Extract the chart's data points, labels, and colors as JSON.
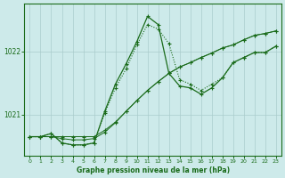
{
  "background_color": "#cdeaea",
  "grid_color": "#aacccc",
  "line_color": "#1a6b1a",
  "title": "Graphe pression niveau de la mer (hPa)",
  "xmin": -0.5,
  "xmax": 23.5,
  "ymin": 1020.35,
  "ymax": 1022.75,
  "yticks": [
    1021,
    1022
  ],
  "xticks": [
    0,
    1,
    2,
    3,
    4,
    5,
    6,
    7,
    8,
    9,
    10,
    11,
    12,
    13,
    14,
    15,
    16,
    17,
    18,
    19,
    20,
    21,
    22,
    23
  ],
  "line1_x": [
    0,
    1,
    2,
    3,
    4,
    5,
    6,
    7,
    8,
    9,
    10,
    11,
    12,
    13,
    14,
    15,
    16,
    17,
    18,
    19,
    20,
    21,
    22,
    23
  ],
  "line1_y": [
    1020.65,
    1020.65,
    1020.65,
    1020.65,
    1020.65,
    1020.65,
    1020.65,
    1020.75,
    1020.88,
    1021.05,
    1021.22,
    1021.38,
    1021.52,
    1021.65,
    1021.75,
    1021.82,
    1021.9,
    1021.97,
    1022.05,
    1022.1,
    1022.18,
    1022.25,
    1022.28,
    1022.32
  ],
  "line2_x": [
    0,
    1,
    2,
    3,
    4,
    5,
    6,
    7,
    8,
    9,
    10,
    11,
    12,
    13,
    14,
    15,
    16,
    17,
    18,
    19,
    20,
    21,
    22,
    23
  ],
  "line2_y": [
    1020.65,
    1020.65,
    1020.65,
    1020.62,
    1020.6,
    1020.6,
    1020.62,
    1020.72,
    1020.87,
    1021.05,
    1021.22,
    1021.38,
    1021.52,
    1021.65,
    1021.75,
    1021.82,
    1021.9,
    1021.97,
    1022.05,
    1022.1,
    1022.18,
    1022.25,
    1022.28,
    1022.32
  ],
  "line3_x": [
    0,
    1,
    2,
    3,
    4,
    5,
    6,
    7,
    8,
    9,
    10,
    11,
    12,
    13,
    14,
    15,
    16,
    17,
    18,
    19,
    20,
    21,
    22,
    23
  ],
  "line3_y": [
    1020.65,
    1020.65,
    1020.7,
    1020.55,
    1020.52,
    1020.52,
    1020.55,
    1021.02,
    1021.42,
    1021.72,
    1022.1,
    1022.42,
    1022.35,
    1022.12,
    1021.55,
    1021.48,
    1021.38,
    1021.48,
    1021.58,
    1021.82,
    1021.9,
    1021.98,
    1021.98,
    1022.08
  ],
  "line4_x": [
    0,
    1,
    2,
    3,
    4,
    5,
    6,
    7,
    8,
    9,
    10,
    11,
    12,
    13,
    14,
    15,
    16,
    17,
    18,
    19,
    20,
    21,
    22,
    23
  ],
  "line4_y": [
    1020.65,
    1020.65,
    1020.7,
    1020.55,
    1020.52,
    1020.52,
    1020.55,
    1021.05,
    1021.48,
    1021.8,
    1022.15,
    1022.55,
    1022.42,
    1021.65,
    1021.45,
    1021.42,
    1021.32,
    1021.42,
    1021.58,
    1021.82,
    1021.9,
    1021.98,
    1021.98,
    1022.08
  ]
}
